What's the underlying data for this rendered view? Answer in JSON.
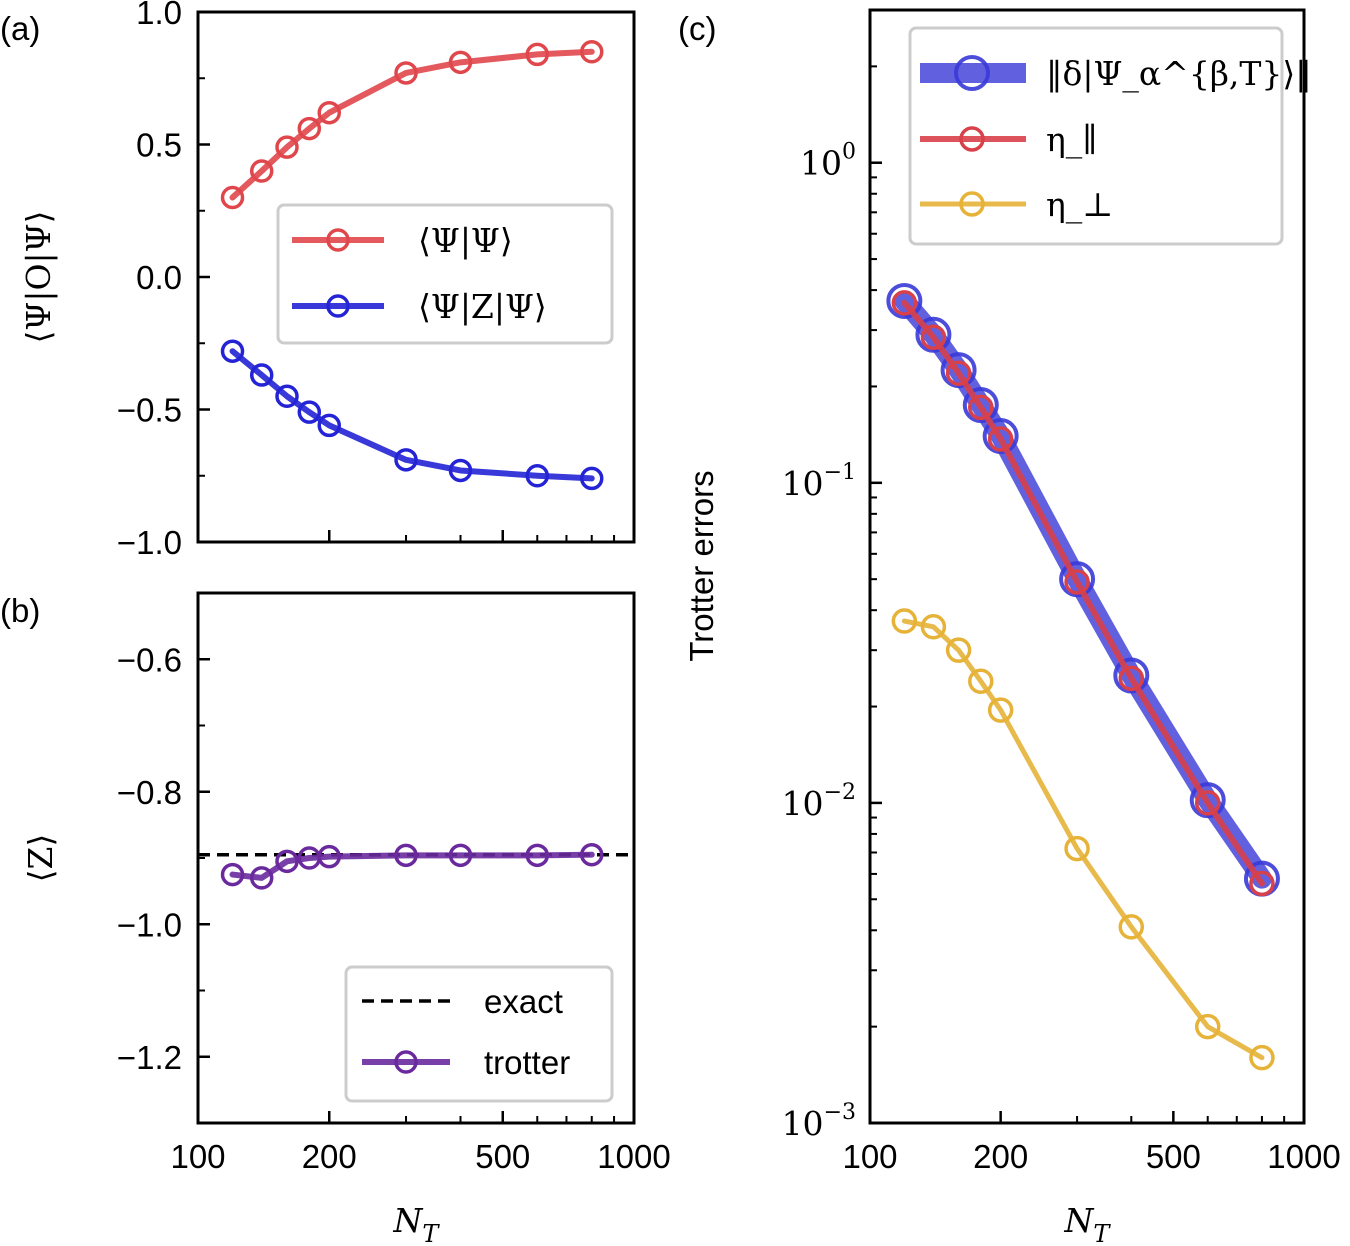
{
  "figure": {
    "xlabel": "N",
    "xlabel_sub": "T",
    "x_ticks": [
      100,
      200,
      500,
      1000
    ],
    "x_tick_labels": [
      "100",
      "200",
      "500",
      "1000"
    ]
  },
  "chart_data": [
    {
      "id": "a",
      "panel_label": "(a)",
      "type": "line",
      "xscale": "log",
      "xlim": [
        100,
        1000
      ],
      "ylim": [
        -1.0,
        1.0
      ],
      "ylabel": "⟨Ψ|O|Ψ⟩",
      "y_ticks": [
        1.0,
        0.5,
        0.0,
        -0.5,
        -1.0
      ],
      "y_tick_labels": [
        "1.0",
        "0.5",
        "0.0",
        "−0.5",
        "−1.0"
      ],
      "x": [
        120,
        140,
        160,
        180,
        200,
        300,
        400,
        600,
        800
      ],
      "series": [
        {
          "name": "⟨Ψ|Ψ⟩",
          "color": "#e0474c",
          "values": [
            0.3,
            0.4,
            0.49,
            0.56,
            0.62,
            0.77,
            0.81,
            0.84,
            0.85
          ]
        },
        {
          "name": "⟨Ψ|Z|Ψ⟩",
          "color": "#2424d6",
          "values": [
            -0.28,
            -0.37,
            -0.45,
            -0.51,
            -0.56,
            -0.69,
            -0.73,
            -0.75,
            -0.76
          ]
        }
      ],
      "legend": "center-right"
    },
    {
      "id": "b",
      "panel_label": "(b)",
      "type": "line",
      "xscale": "log",
      "xlim": [
        100,
        1000
      ],
      "ylim": [
        -1.3,
        -0.5
      ],
      "ylabel": "⟨Z⟩",
      "y_ticks": [
        -0.6,
        -0.8,
        -1.0,
        -1.2
      ],
      "y_tick_labels": [
        "−0.6",
        "−0.8",
        "−1.0",
        "−1.2"
      ],
      "x": [
        120,
        140,
        160,
        180,
        200,
        300,
        400,
        600,
        800
      ],
      "exact": {
        "name": "exact",
        "color": "#000000",
        "value": -0.895
      },
      "series": [
        {
          "name": "trotter",
          "color": "#6a2a9e",
          "values": [
            -0.925,
            -0.93,
            -0.905,
            -0.9,
            -0.898,
            -0.896,
            -0.896,
            -0.896,
            -0.895
          ]
        }
      ],
      "legend": "lower-right"
    },
    {
      "id": "c",
      "panel_label": "(c)",
      "type": "line",
      "xscale": "log",
      "yscale": "log",
      "xlim": [
        100,
        1000
      ],
      "ylim": [
        0.001,
        3.0
      ],
      "ylabel": "Trotter errors",
      "y_ticks": [
        1,
        0.1,
        0.01,
        0.001
      ],
      "y_tick_labels": [
        {
          "base": "10",
          "exp": "0"
        },
        {
          "base": "10",
          "exp": "−1"
        },
        {
          "base": "10",
          "exp": "−2"
        },
        {
          "base": "10",
          "exp": "−3"
        }
      ],
      "x": [
        120,
        140,
        160,
        180,
        200,
        300,
        400,
        600,
        800
      ],
      "series": [
        {
          "name": "‖δ|Ψ_α^{β,T}⟩‖",
          "color": "#3a3ad8",
          "values": [
            0.37,
            0.29,
            0.225,
            0.175,
            0.14,
            0.05,
            0.025,
            0.0102,
            0.0058
          ]
        },
        {
          "name": "η_∥",
          "color": "#d8404a",
          "values": [
            0.365,
            0.285,
            0.22,
            0.172,
            0.137,
            0.049,
            0.0245,
            0.01,
            0.0056
          ]
        },
        {
          "name": "η_⊥",
          "color": "#e6b338",
          "values": [
            0.037,
            0.0355,
            0.03,
            0.024,
            0.0195,
            0.0072,
            0.0041,
            0.002,
            0.0016
          ]
        }
      ],
      "legend": "top-right"
    }
  ]
}
